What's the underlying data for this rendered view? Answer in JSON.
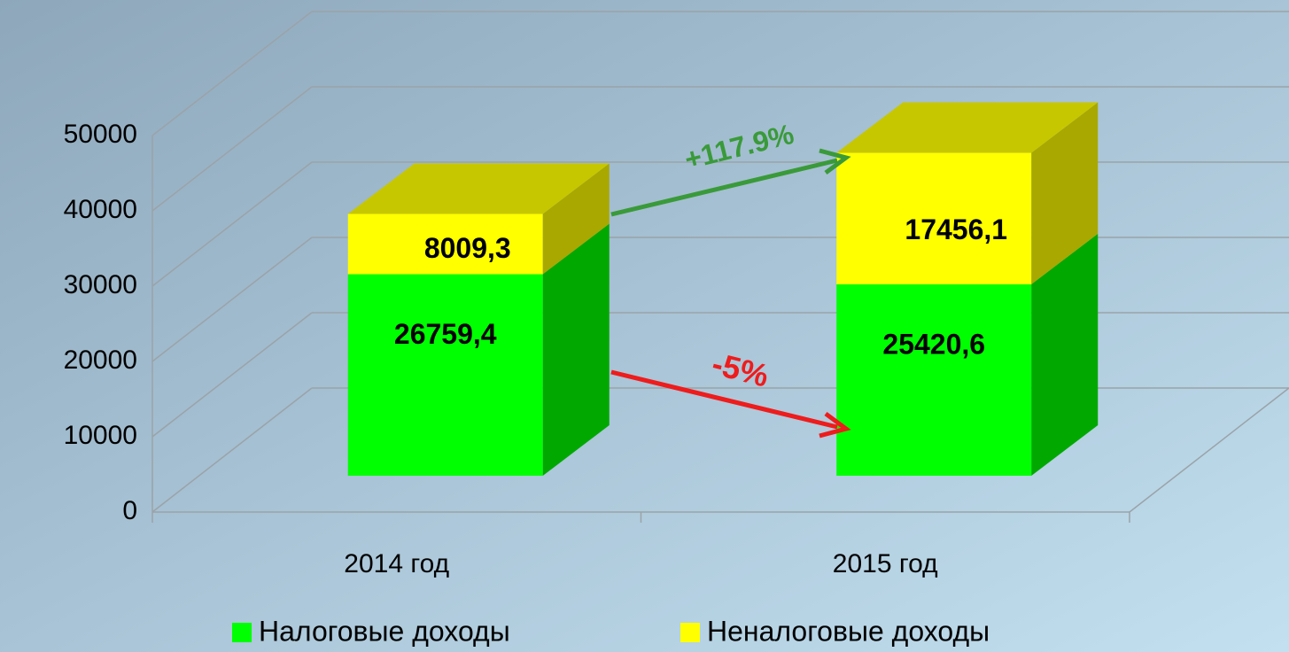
{
  "chart_data": {
    "type": "bar3d_stacked",
    "categories": [
      "2014 год",
      "2015 год"
    ],
    "series": [
      {
        "name": "Налоговые доходы",
        "color": "#00ff00",
        "values": [
          26759.4,
          25420.6
        ],
        "value_labels": [
          "26759,4",
          "25420,6"
        ]
      },
      {
        "name": "Неналоговые доходы",
        "color": "#ffff00",
        "values": [
          8009.3,
          17456.1
        ],
        "value_labels": [
          "8009,3",
          "17456,1"
        ]
      }
    ],
    "ylim": [
      0,
      50000
    ],
    "yticks": [
      0,
      10000,
      20000,
      30000,
      40000,
      50000
    ],
    "grid": true,
    "annotations": [
      "+117.9%",
      "-5%"
    ],
    "legend": "bottom"
  }
}
